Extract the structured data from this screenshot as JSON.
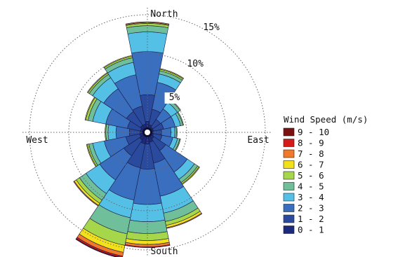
{
  "chart_data": {
    "type": "wind-rose",
    "direction_labels": {
      "north": "North",
      "south": "South",
      "east": "East",
      "west": "West"
    },
    "ring_labels": [
      "5%",
      "10%",
      "15%"
    ],
    "ring_values": [
      5,
      10,
      15
    ],
    "legend_title": "Wind Speed (m/s)",
    "speed_bins": [
      {
        "label": "0 - 1",
        "color": "#1b2a7a"
      },
      {
        "label": "1 - 2",
        "color": "#2a4a9e"
      },
      {
        "label": "2 - 3",
        "color": "#3a6fc0"
      },
      {
        "label": "3 - 4",
        "color": "#55c0e6"
      },
      {
        "label": "4 - 5",
        "color": "#6fbf9a"
      },
      {
        "label": "5 - 6",
        "color": "#a6d64a"
      },
      {
        "label": "6 - 7",
        "color": "#f2e01a"
      },
      {
        "label": "7 - 8",
        "color": "#f07a2a"
      },
      {
        "label": "8 - 9",
        "color": "#d61a1a"
      },
      {
        "label": "9 - 10",
        "color": "#7a1010"
      }
    ],
    "directions_deg": [
      0,
      22.5,
      45,
      67.5,
      90,
      112.5,
      135,
      157.5,
      180,
      202.5,
      225,
      247.5,
      270,
      292.5,
      315,
      337.5
    ],
    "sector_cumulative_percent": [
      [
        1.4,
        4.8,
        10.3,
        12.8,
        13.6,
        13.9,
        14.0,
        14.1,
        14.1,
        14.1
      ],
      [
        1.0,
        3.0,
        6.5,
        7.6,
        8.0,
        8.2,
        8.3,
        8.3,
        8.3,
        8.3
      ],
      [
        0.8,
        2.0,
        3.6,
        4.6,
        5.0,
        5.1,
        5.1,
        5.1,
        5.1,
        5.1
      ],
      [
        0.8,
        2.1,
        3.6,
        4.3,
        4.6,
        4.7,
        4.7,
        4.7,
        4.7,
        4.7
      ],
      [
        0.7,
        1.8,
        3.0,
        3.5,
        3.7,
        3.8,
        3.8,
        3.8,
        3.8,
        3.8
      ],
      [
        0.8,
        1.9,
        3.3,
        3.9,
        4.2,
        4.3,
        4.3,
        4.3,
        4.3,
        4.3
      ],
      [
        1.0,
        2.8,
        6.1,
        7.2,
        7.7,
        7.9,
        8.0,
        8.0,
        8.0,
        8.0
      ],
      [
        1.3,
        4.0,
        8.3,
        10.5,
        11.6,
        12.1,
        12.4,
        12.5,
        12.5,
        12.5
      ],
      [
        1.5,
        4.7,
        9.2,
        11.4,
        12.9,
        13.8,
        14.3,
        14.6,
        14.7,
        14.7
      ],
      [
        1.5,
        4.6,
        8.8,
        11.1,
        13.2,
        14.7,
        15.6,
        16.1,
        16.3,
        16.4
      ],
      [
        1.2,
        3.6,
        7.3,
        9.4,
        10.4,
        10.9,
        11.2,
        11.3,
        11.3,
        11.3
      ],
      [
        1.0,
        2.8,
        5.6,
        7.1,
        7.6,
        7.8,
        7.9,
        7.9,
        7.9,
        7.9
      ],
      [
        0.9,
        2.3,
        4.0,
        5.0,
        5.3,
        5.4,
        5.4,
        5.4,
        5.4,
        5.4
      ],
      [
        0.9,
        2.6,
        5.4,
        7.1,
        7.7,
        8.0,
        8.1,
        8.1,
        8.1,
        8.1
      ],
      [
        1.1,
        3.2,
        6.7,
        8.4,
        8.9,
        9.1,
        9.2,
        9.2,
        9.2,
        9.2
      ],
      [
        1.1,
        3.4,
        7.5,
        9.1,
        9.7,
        9.9,
        10.0,
        10.0,
        10.0,
        10.0
      ]
    ],
    "grid": true,
    "legend_position": "right"
  }
}
